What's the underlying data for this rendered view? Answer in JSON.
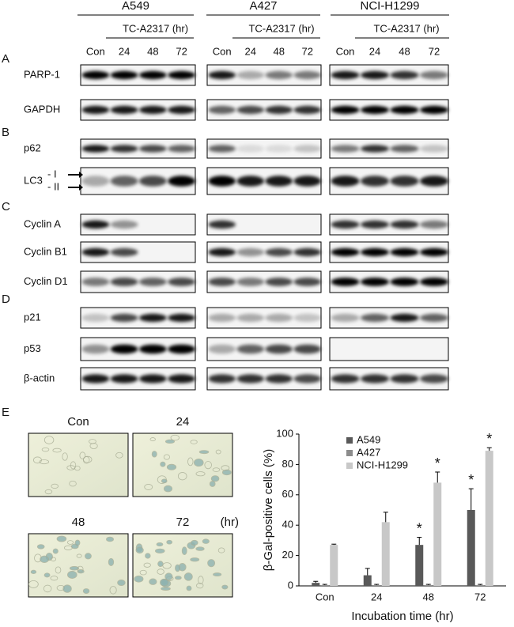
{
  "figure": {
    "cell_lines": [
      "A549",
      "A427",
      "NCI-H1299"
    ],
    "treatment": "TC-A2317 (hr)",
    "lanes": [
      "Con",
      "24",
      "48",
      "72"
    ],
    "panels": [
      {
        "label": "A",
        "rows": [
          "PARP-1",
          "GAPDH"
        ]
      },
      {
        "label": "B",
        "rows": [
          "p62",
          "LC3"
        ]
      },
      {
        "label": "C",
        "rows": [
          "Cyclin A",
          "Cyclin B1",
          "Cyclin D1"
        ]
      },
      {
        "label": "D",
        "rows": [
          "p21",
          "p53",
          "β-actin"
        ]
      }
    ],
    "lc3_forms": [
      "- I",
      "- II"
    ]
  },
  "photos": {
    "label": "E",
    "images": [
      "Con",
      "24",
      "48",
      "72"
    ],
    "unit": "(hr)"
  },
  "chart_data": {
    "type": "bar",
    "ylabel": "β-Gal-positive cells  (%)",
    "xlabel": "Incubation time (hr)",
    "categories": [
      "Con",
      "24",
      "48",
      "72"
    ],
    "series": [
      {
        "name": "A549",
        "color": "#595959",
        "values": [
          2,
          7,
          27,
          50
        ],
        "errors": [
          1,
          4.5,
          5,
          14
        ]
      },
      {
        "name": "A427",
        "color": "#8c8c8c",
        "values": [
          0.5,
          0.5,
          0.5,
          0.5
        ],
        "errors": [
          0.5,
          0.5,
          0.5,
          0.5
        ]
      },
      {
        "name": "NCI-H1299",
        "color": "#c8c8c8",
        "values": [
          27,
          42,
          68,
          89
        ],
        "errors": [
          0.5,
          6.5,
          7,
          2
        ]
      }
    ],
    "ylim": [
      0,
      100
    ],
    "yticks": [
      0,
      20,
      40,
      60,
      80,
      100
    ],
    "legend": "upper-left",
    "annotations": [
      {
        "text": "*",
        "category": "48",
        "series": "A549"
      },
      {
        "text": "*",
        "category": "48",
        "series": "NCI-H1299"
      },
      {
        "text": "*",
        "category": "72",
        "series": "A549"
      },
      {
        "text": "*",
        "category": "72",
        "series": "NCI-H1299"
      }
    ]
  }
}
